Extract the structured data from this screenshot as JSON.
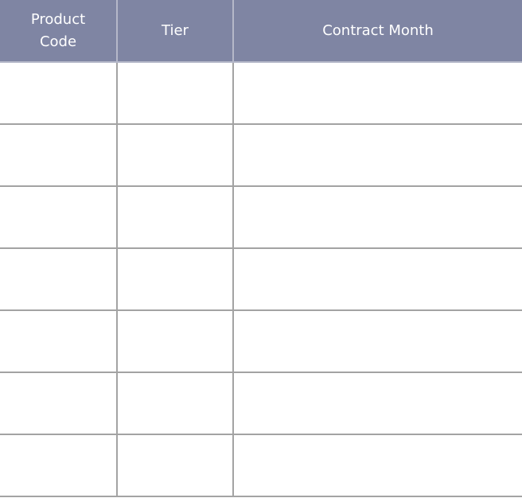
{
  "table": {
    "columns": [
      {
        "label": "Product Code"
      },
      {
        "label": "Tier"
      },
      {
        "label": "Contract Month"
      }
    ],
    "rows": [
      [
        "",
        "",
        ""
      ],
      [
        "",
        "",
        ""
      ],
      [
        "",
        "",
        ""
      ],
      [
        "",
        "",
        ""
      ],
      [
        "",
        "",
        ""
      ],
      [
        "",
        "",
        ""
      ],
      [
        "",
        "",
        ""
      ]
    ]
  },
  "colors": {
    "header_background": "#7f85a3",
    "header_text": "#ffffff",
    "grid_line": "#a3a3a3",
    "cell_background": "#ffffff"
  }
}
